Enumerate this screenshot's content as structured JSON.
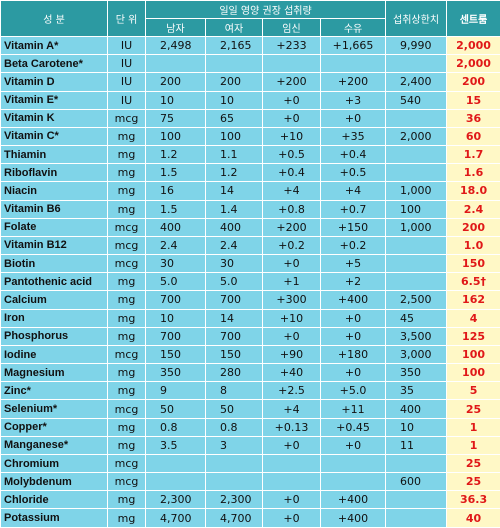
{
  "table": {
    "header": {
      "name": "성 분",
      "unit": "단 위",
      "rda": "일일 영양 권장 섭취량",
      "sub": [
        "남자",
        "여자",
        "임신",
        "수유"
      ],
      "upper": "섭취상한치",
      "centrum": "센트룸"
    },
    "rows": [
      [
        "Vitamin A*",
        "IU",
        "2,498",
        "2,165",
        "+233",
        "+1,665",
        "9,990",
        "2,000"
      ],
      [
        "Beta Carotene*",
        "IU",
        null,
        null,
        null,
        null,
        null,
        "2,000"
      ],
      [
        "Vitamin D",
        "IU",
        "200",
        "200",
        "+200",
        "+200",
        "2,400",
        "200"
      ],
      [
        "Vitamin E*",
        "IU",
        "10",
        "10",
        "+0",
        "+3",
        "540",
        "15"
      ],
      [
        "Vitamin K",
        "mcg",
        "75",
        "65",
        "+0",
        "+0",
        null,
        "36"
      ],
      [
        "Vitamin C*",
        "mg",
        "100",
        "100",
        "+10",
        "+35",
        "2,000",
        "60"
      ],
      [
        "Thiamin",
        "mg",
        "1.2",
        "1.1",
        "+0.5",
        "+0.4",
        null,
        "1.7"
      ],
      [
        "Riboflavin",
        "mg",
        "1.5",
        "1.2",
        "+0.4",
        "+0.5",
        null,
        "1.6"
      ],
      [
        "Niacin",
        "mg",
        "16",
        "14",
        "+4",
        "+4",
        "1,000",
        "18.0"
      ],
      [
        "Vitamin B6",
        "mg",
        "1.5",
        "1.4",
        "+0.8",
        "+0.7",
        "100",
        "2.4"
      ],
      [
        "Folate",
        "mcg",
        "400",
        "400",
        "+200",
        "+150",
        "1,000",
        "200"
      ],
      [
        "Vitamin B12",
        "mcg",
        "2.4",
        "2.4",
        "+0.2",
        "+0.2",
        null,
        "1.0"
      ],
      [
        "Biotin",
        "mcg",
        "30",
        "30",
        "+0",
        "+5",
        null,
        "150"
      ],
      [
        "Pantothenic acid",
        "mg",
        "5.0",
        "5.0",
        "+1",
        "+2",
        null,
        "6.5†"
      ],
      [
        "Calcium",
        "mg",
        "700",
        "700",
        "+300",
        "+400",
        "2,500",
        "162"
      ],
      [
        "Iron",
        "mg",
        "10",
        "14",
        "+10",
        "+0",
        "45",
        "4"
      ],
      [
        "Phosphorus",
        "mg",
        "700",
        "700",
        "+0",
        "+0",
        "3,500",
        "125"
      ],
      [
        "Iodine",
        "mcg",
        "150",
        "150",
        "+90",
        "+180",
        "3,000",
        "100"
      ],
      [
        "Magnesium",
        "mg",
        "350",
        "280",
        "+40",
        "+0",
        "350",
        "100"
      ],
      [
        "Zinc*",
        "mg",
        "9",
        "8",
        "+2.5",
        "+5.0",
        "35",
        "5"
      ],
      [
        "Selenium*",
        "mcg",
        "50",
        "50",
        "+4",
        "+11",
        "400",
        "25"
      ],
      [
        "Copper*",
        "mg",
        "0.8",
        "0.8",
        "+0.13",
        "+0.45",
        "10",
        "1"
      ],
      [
        "Manganese*",
        "mg",
        "3.5",
        "3",
        "+0",
        "+0",
        "11",
        "1"
      ],
      [
        "Chromium",
        "mcg",
        null,
        null,
        null,
        null,
        null,
        "25"
      ],
      [
        "Molybdenum",
        "mcg",
        null,
        null,
        null,
        null,
        "600",
        "25"
      ],
      [
        "Chloride",
        "mg",
        "2,300",
        "2,300",
        "+0",
        "+400",
        null,
        "36.3"
      ],
      [
        "Potassium",
        "mg",
        "4,700",
        "4,700",
        "+0",
        "+400",
        null,
        "40"
      ]
    ]
  }
}
